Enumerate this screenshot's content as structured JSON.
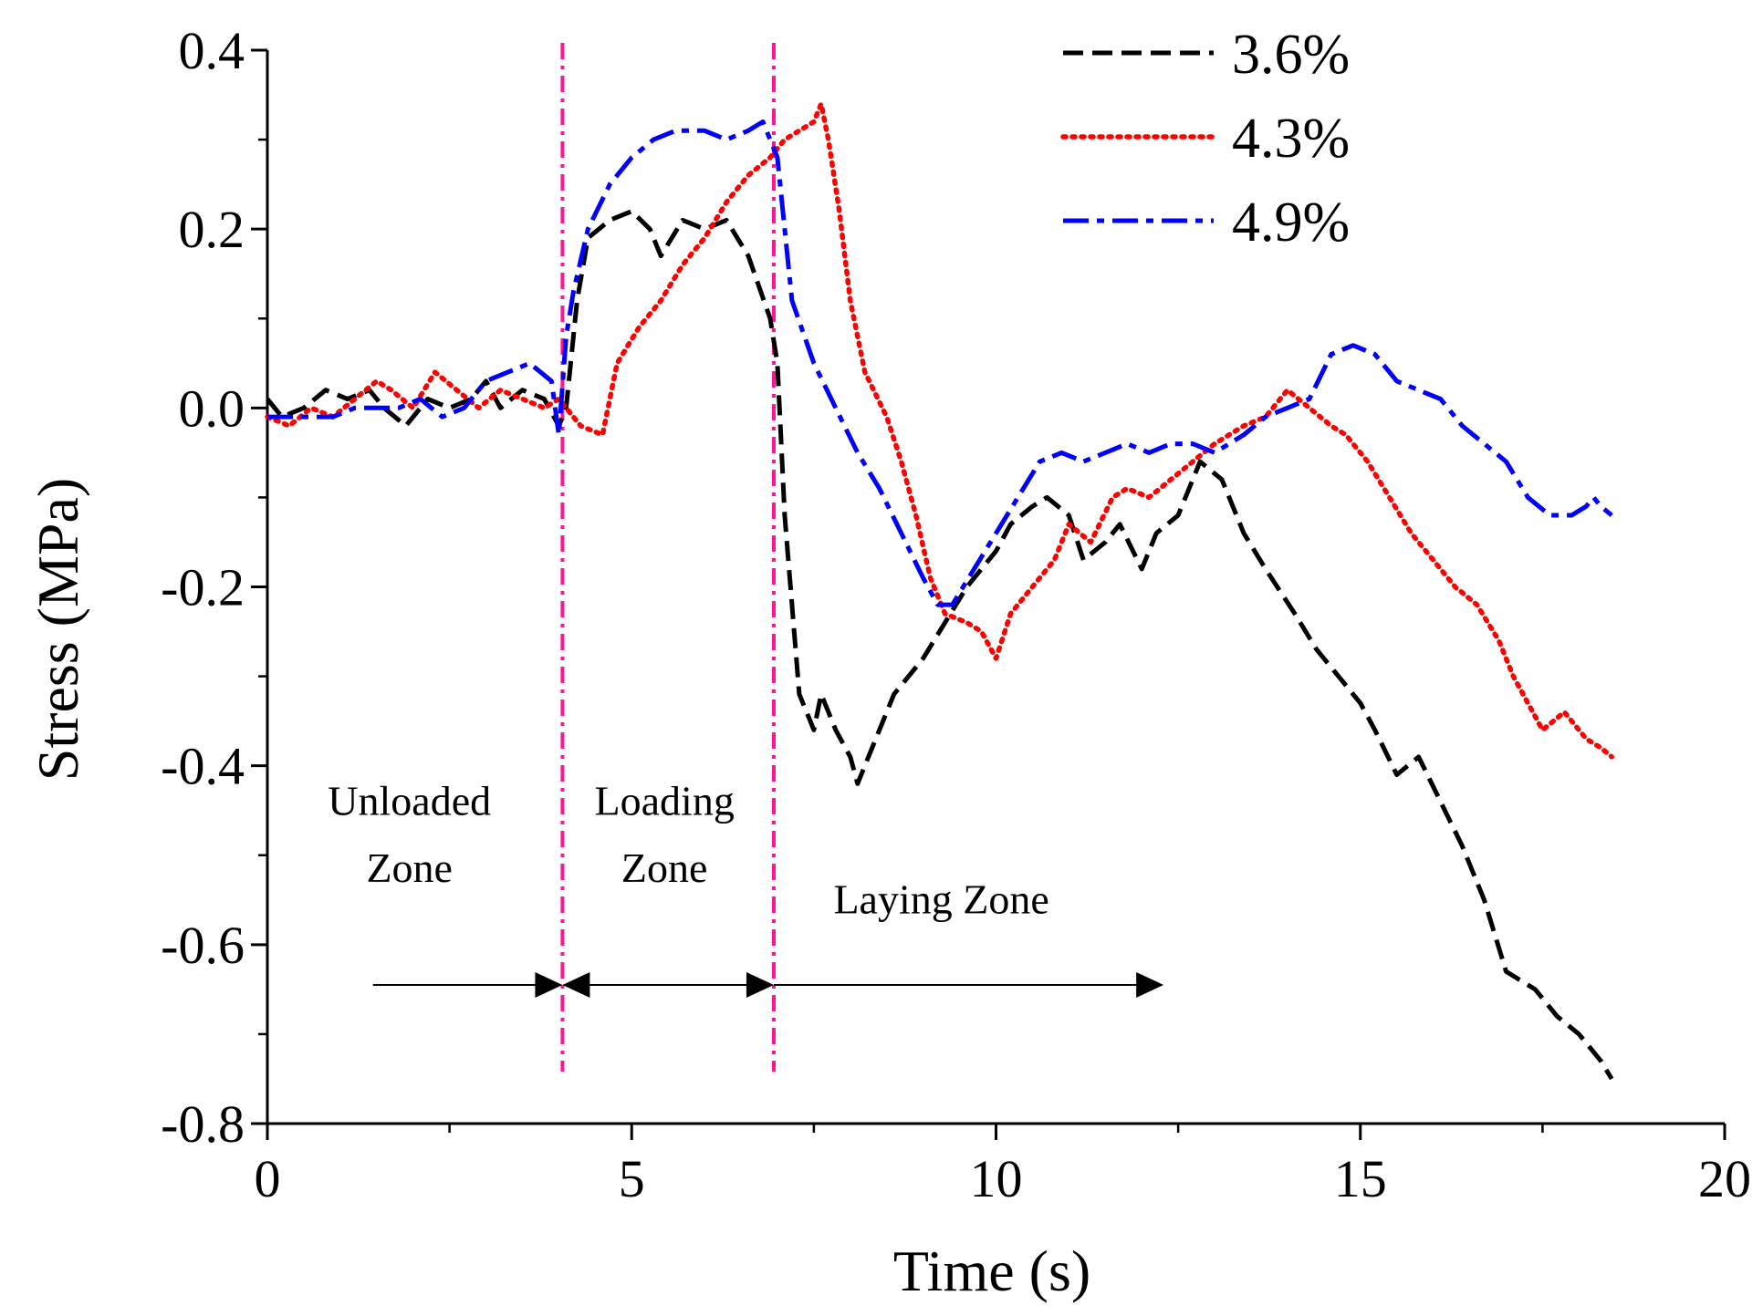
{
  "chart_data": {
    "type": "line",
    "title": "",
    "xlabel": "Time (s)",
    "ylabel": "Stress (MPa)",
    "xlim": [
      0,
      20
    ],
    "ylim": [
      -0.8,
      0.4
    ],
    "xticks": [
      0,
      5,
      10,
      15,
      20
    ],
    "xtick_labels": [
      "0",
      "5",
      "10",
      "15",
      "20"
    ],
    "yticks": [
      0.4,
      0.2,
      0.0,
      -0.2,
      -0.4,
      -0.6,
      -0.8
    ],
    "ytick_labels": [
      "0.4",
      "0.2",
      "0.0",
      "-0.2",
      "-0.4",
      "-0.6",
      "-0.8"
    ],
    "grid": false,
    "legend_position": "top-right",
    "series": [
      {
        "name": "3.6%",
        "color": "#000000",
        "style": "dashed",
        "x": [
          0,
          0.2,
          0.5,
          0.8,
          1.1,
          1.4,
          1.6,
          1.9,
          2.2,
          2.5,
          2.8,
          3.0,
          3.2,
          3.5,
          3.8,
          4.0,
          4.1,
          4.25,
          4.4,
          4.7,
          5.0,
          5.25,
          5.4,
          5.7,
          6.0,
          6.3,
          6.6,
          6.9,
          7.0,
          7.1,
          7.3,
          7.5,
          7.6,
          7.8,
          8.0,
          8.1,
          8.4,
          8.6,
          9.0,
          9.3,
          9.6,
          10.0,
          10.2,
          10.5,
          10.7,
          11.0,
          11.2,
          11.5,
          11.7,
          12.0,
          12.2,
          12.5,
          12.8,
          13.1,
          13.4,
          13.7,
          14.1,
          14.4,
          14.7,
          15.0,
          15.2,
          15.5,
          15.8,
          16.1,
          16.4,
          16.7,
          17.0,
          17.4,
          17.7,
          18.0,
          18.3,
          18.45
        ],
        "y": [
          0.01,
          -0.01,
          0.0,
          0.02,
          0.01,
          0.02,
          0.0,
          -0.02,
          0.01,
          0.0,
          0.01,
          0.03,
          0.0,
          0.02,
          0.01,
          -0.02,
          0.0,
          0.12,
          0.19,
          0.21,
          0.22,
          0.2,
          0.17,
          0.21,
          0.2,
          0.21,
          0.17,
          0.1,
          0.05,
          -0.12,
          -0.32,
          -0.36,
          -0.32,
          -0.36,
          -0.39,
          -0.42,
          -0.36,
          -0.32,
          -0.28,
          -0.24,
          -0.2,
          -0.16,
          -0.13,
          -0.11,
          -0.1,
          -0.12,
          -0.17,
          -0.15,
          -0.13,
          -0.18,
          -0.14,
          -0.12,
          -0.06,
          -0.08,
          -0.14,
          -0.18,
          -0.23,
          -0.27,
          -0.3,
          -0.33,
          -0.36,
          -0.41,
          -0.39,
          -0.44,
          -0.49,
          -0.55,
          -0.63,
          -0.65,
          -0.68,
          -0.7,
          -0.73,
          -0.75
        ]
      },
      {
        "name": "4.3%",
        "color": "#ff0000",
        "style": "dotted",
        "x": [
          0,
          0.3,
          0.6,
          0.9,
          1.2,
          1.5,
          1.7,
          2.0,
          2.3,
          2.6,
          2.9,
          3.2,
          3.5,
          3.8,
          4.0,
          4.3,
          4.6,
          4.8,
          5.1,
          5.4,
          5.7,
          6.0,
          6.3,
          6.6,
          6.9,
          7.1,
          7.3,
          7.5,
          7.6,
          7.7,
          7.85,
          8.0,
          8.2,
          8.5,
          8.7,
          8.9,
          9.1,
          9.3,
          9.6,
          9.8,
          10.0,
          10.2,
          10.5,
          10.8,
          11.0,
          11.3,
          11.6,
          11.8,
          12.1,
          12.4,
          12.7,
          13.0,
          13.4,
          13.7,
          14.0,
          14.3,
          14.6,
          14.8,
          15.1,
          15.4,
          15.7,
          16.0,
          16.3,
          16.6,
          16.9,
          17.1,
          17.3,
          17.5,
          17.8,
          18.1,
          18.3,
          18.45
        ],
        "y": [
          -0.01,
          -0.02,
          0.0,
          -0.01,
          0.01,
          0.03,
          0.02,
          0.0,
          0.04,
          0.02,
          0.0,
          0.02,
          0.01,
          0.0,
          0.01,
          -0.02,
          -0.03,
          0.05,
          0.09,
          0.12,
          0.16,
          0.19,
          0.23,
          0.26,
          0.28,
          0.3,
          0.31,
          0.32,
          0.34,
          0.3,
          0.22,
          0.12,
          0.04,
          -0.01,
          -0.06,
          -0.12,
          -0.19,
          -0.23,
          -0.24,
          -0.25,
          -0.28,
          -0.23,
          -0.2,
          -0.17,
          -0.13,
          -0.15,
          -0.1,
          -0.09,
          -0.1,
          -0.08,
          -0.06,
          -0.04,
          -0.02,
          -0.01,
          0.02,
          0.0,
          -0.02,
          -0.03,
          -0.06,
          -0.1,
          -0.14,
          -0.17,
          -0.2,
          -0.22,
          -0.26,
          -0.3,
          -0.33,
          -0.36,
          -0.34,
          -0.37,
          -0.38,
          -0.39
        ]
      },
      {
        "name": "4.9%",
        "color": "#0000ff",
        "style": "dashdot",
        "x": [
          0,
          0.3,
          0.6,
          0.9,
          1.2,
          1.5,
          1.8,
          2.1,
          2.4,
          2.7,
          3.0,
          3.3,
          3.6,
          3.9,
          4.0,
          4.1,
          4.2,
          4.4,
          4.7,
          5.0,
          5.3,
          5.6,
          6.0,
          6.3,
          6.6,
          6.8,
          6.9,
          7.0,
          7.2,
          7.5,
          7.8,
          8.1,
          8.4,
          8.7,
          9.0,
          9.2,
          9.4,
          9.7,
          10.0,
          10.3,
          10.6,
          10.9,
          11.2,
          11.5,
          11.8,
          12.1,
          12.4,
          12.7,
          13.0,
          13.4,
          13.7,
          14.0,
          14.3,
          14.6,
          14.9,
          15.2,
          15.5,
          15.8,
          16.1,
          16.4,
          16.7,
          17.0,
          17.3,
          17.6,
          17.9,
          18.1,
          18.2,
          18.3,
          18.45
        ],
        "y": [
          -0.01,
          -0.01,
          -0.01,
          -0.01,
          0.0,
          0.0,
          0.0,
          0.01,
          -0.01,
          0.0,
          0.03,
          0.04,
          0.05,
          0.03,
          -0.03,
          0.08,
          0.13,
          0.2,
          0.25,
          0.28,
          0.3,
          0.31,
          0.31,
          0.3,
          0.31,
          0.32,
          0.3,
          0.28,
          0.12,
          0.05,
          0.0,
          -0.05,
          -0.09,
          -0.14,
          -0.19,
          -0.22,
          -0.22,
          -0.18,
          -0.14,
          -0.1,
          -0.06,
          -0.05,
          -0.06,
          -0.05,
          -0.04,
          -0.05,
          -0.04,
          -0.04,
          -0.05,
          -0.03,
          -0.01,
          0.0,
          0.01,
          0.06,
          0.07,
          0.06,
          0.03,
          0.02,
          0.01,
          -0.02,
          -0.04,
          -0.06,
          -0.1,
          -0.12,
          -0.12,
          -0.11,
          -0.1,
          -0.11,
          -0.12
        ]
      }
    ],
    "reference_lines": [
      {
        "x": 4.05,
        "color": "#ff1493",
        "style": "dashdot"
      },
      {
        "x": 6.95,
        "color": "#ff1493",
        "style": "dashdot"
      }
    ],
    "zones": [
      {
        "label_lines": [
          "Unloaded",
          "Zone"
        ],
        "x_start": 1.45,
        "x_end": 4.05,
        "label_x": 1.95
      },
      {
        "label_lines": [
          "Loading",
          "Zone"
        ],
        "x_start": 4.05,
        "x_end": 6.95,
        "label_x": 5.45
      },
      {
        "label_lines": [
          "Laying Zone"
        ],
        "x_start": 6.95,
        "x_end": 12.3,
        "label_x": 9.25
      }
    ],
    "zone_arrow_y": -0.645,
    "zone_label_y": [
      -0.455,
      -0.53
    ],
    "zone_label_single_y": -0.565
  }
}
